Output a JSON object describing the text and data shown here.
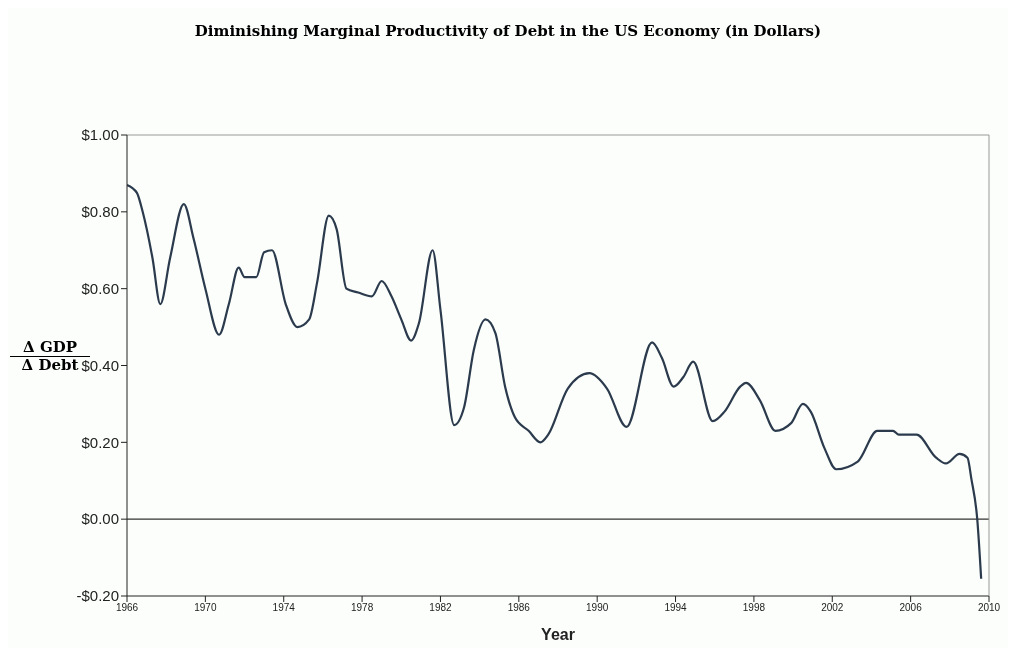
{
  "chart_data": {
    "type": "line",
    "title": "Diminishing Marginal Productivity of Debt in the US Economy  (in Dollars)",
    "xlabel": "Year",
    "ylabel": "Δ GDP\nΔ Debt",
    "xlim": [
      1966,
      2010
    ],
    "xticks": [
      1966,
      1970,
      1974,
      1978,
      1982,
      1986,
      1990,
      1994,
      1998,
      2002,
      2006,
      2010
    ],
    "ylim": [
      -0.2,
      1.0
    ],
    "yticks": [
      {
        "value": -0.2,
        "label": "-$0.20"
      },
      {
        "value": 0,
        "label": "$0.00"
      },
      {
        "value": 0.2,
        "label": "$0.20"
      },
      {
        "value": 0.4,
        "label": "$0.40"
      },
      {
        "value": 0.6,
        "label": "$0.60"
      },
      {
        "value": 0.8,
        "label": "$0.80"
      },
      {
        "value": 1.0,
        "label": "$1.00"
      }
    ],
    "grid": false,
    "marker": "none",
    "line_style": "solid",
    "ref_lines": [
      {
        "axis": "y",
        "value": 0,
        "color": "#333333"
      }
    ],
    "series": [
      {
        "color": "#2b3a4c",
        "x": [
          1966.0,
          1966.5,
          1966.8,
          1967.3,
          1967.7,
          1968.2,
          1968.9,
          1969.4,
          1970.0,
          1970.7,
          1971.2,
          1971.7,
          1972.0,
          1972.6,
          1973.0,
          1973.4,
          1974.1,
          1974.7,
          1975.3,
          1975.7,
          1976.3,
          1976.7,
          1977.2,
          1977.8,
          1978.5,
          1979.0,
          1979.5,
          1980.0,
          1980.5,
          1980.9,
          1981.6,
          1982.0,
          1982.7,
          1983.2,
          1983.7,
          1984.3,
          1984.8,
          1985.3,
          1985.8,
          1986.5,
          1987.1,
          1987.5,
          1988.5,
          1989.6,
          1990.5,
          1991.5,
          1992.8,
          1993.3,
          1993.9,
          1994.4,
          1994.9,
          1995.9,
          1996.5,
          1997.3,
          1997.6,
          1998.3,
          1999.1,
          1999.9,
          2000.5,
          2000.9,
          2001.6,
          2002.2,
          2003.3,
          2004.3,
          2005.1,
          2005.4,
          2006.3,
          2007.3,
          2007.8,
          2008.5,
          2008.9,
          2009.1,
          2009.4,
          2009.6
        ],
        "values": [
          0.87,
          0.85,
          0.8,
          0.68,
          0.56,
          0.68,
          0.82,
          0.73,
          0.6,
          0.48,
          0.56,
          0.655,
          0.63,
          0.63,
          0.695,
          0.7,
          0.56,
          0.5,
          0.52,
          0.615,
          0.79,
          0.755,
          0.6,
          0.59,
          0.58,
          0.62,
          0.58,
          0.52,
          0.465,
          0.51,
          0.7,
          0.545,
          0.245,
          0.29,
          0.44,
          0.52,
          0.485,
          0.345,
          0.265,
          0.23,
          0.2,
          0.22,
          0.34,
          0.38,
          0.34,
          0.24,
          0.46,
          0.42,
          0.345,
          0.37,
          0.41,
          0.255,
          0.28,
          0.345,
          0.355,
          0.31,
          0.23,
          0.25,
          0.3,
          0.28,
          0.185,
          0.13,
          0.15,
          0.23,
          0.23,
          0.22,
          0.22,
          0.16,
          0.145,
          0.17,
          0.16,
          0.105,
          0.0,
          -0.155
        ]
      }
    ]
  }
}
